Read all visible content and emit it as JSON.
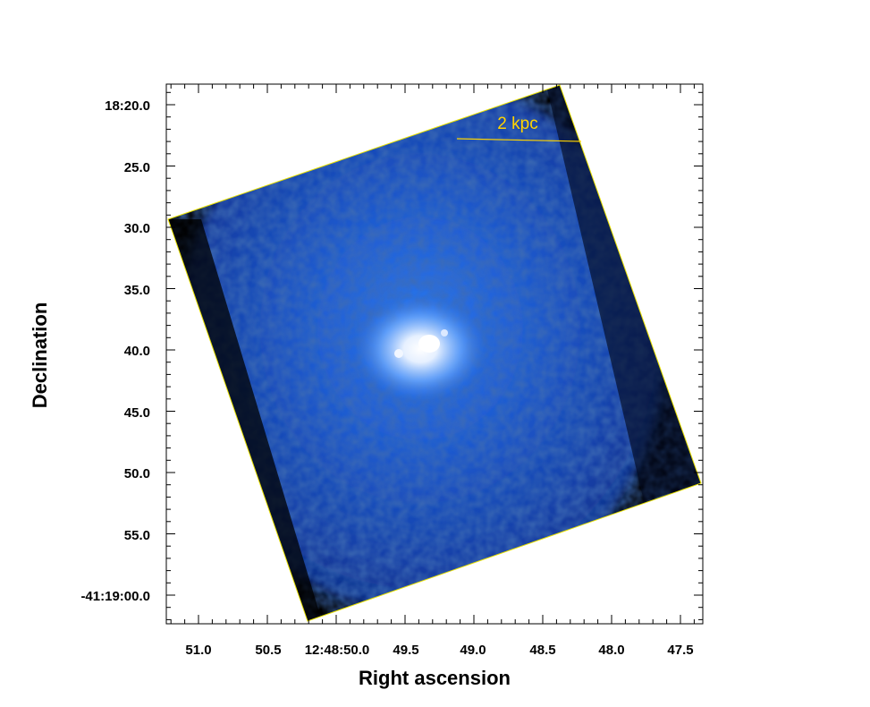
{
  "axes": {
    "xlabel": "Right ascension",
    "ylabel": "Declination",
    "x_ticks": [
      "51.0",
      "50.5",
      "12:48:50.0",
      "49.5",
      "49.0",
      "48.5",
      "48.0",
      "47.5"
    ],
    "y_ticks": [
      "18:20.0",
      "25.0",
      "30.0",
      "35.0",
      "40.0",
      "45.0",
      "50.0",
      "55.0",
      "-41:19:00.0"
    ]
  },
  "scale_bar": {
    "label": "2 kpc"
  },
  "colors": {
    "background_sky": "#000000",
    "emission_outer": "#0a2a8a",
    "emission_mid": "#2a6ee0",
    "emission_core": "#ffffff",
    "footprint_outline": "#e8e000",
    "scale_bar": "#ffd400",
    "frame": "#000000"
  },
  "image": {
    "description_icon": "x-ray-diffuse-emission-image"
  }
}
